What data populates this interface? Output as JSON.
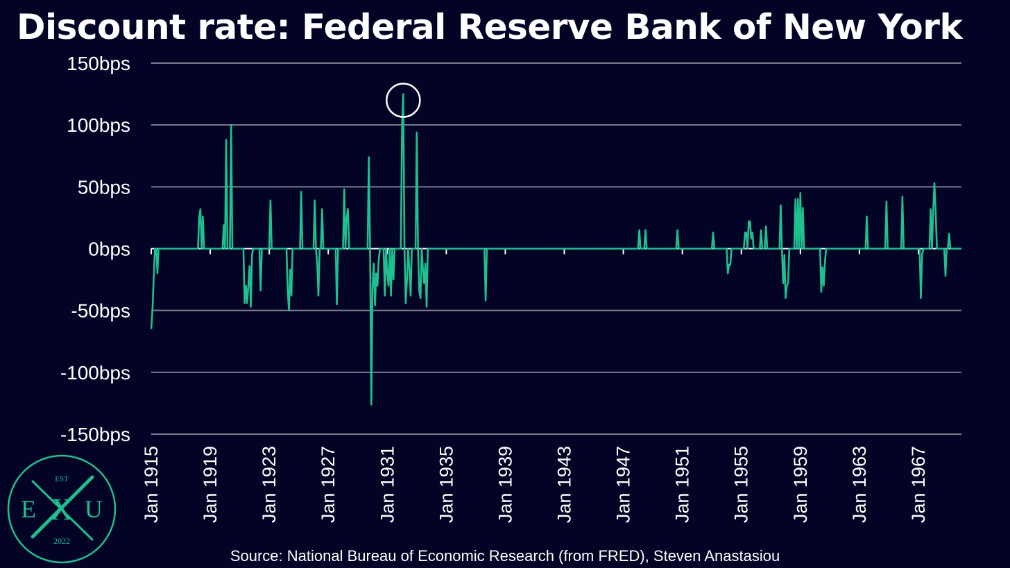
{
  "title": "Discount rate: Federal Reserve Bank of New York",
  "source": "Source: National Bureau of Economic Research (from FRED), Steven Anastasiou",
  "logo": {
    "top_text": "EST",
    "left_letter": "E",
    "center_letter": "X",
    "right_letter": "U",
    "bottom_text": "2022"
  },
  "colors": {
    "background": "#030326",
    "line": "#1fbf8f",
    "grid": "#7d7d92",
    "text": "#ffffff",
    "logo": "#1fbf8f"
  },
  "chart_data": {
    "type": "line",
    "title": "Discount rate: Federal Reserve Bank of New York",
    "xlabel": "",
    "ylabel": "",
    "x_range": [
      "1915-01",
      "1969-12"
    ],
    "ylim": [
      -150,
      150
    ],
    "y_ticks": [
      150,
      100,
      50,
      0,
      -50,
      -100,
      -150
    ],
    "y_tick_labels": [
      "150bps",
      "100bps",
      "50bps",
      "0bps",
      "-50bps",
      "-100bps",
      "-150bps"
    ],
    "x_ticks": [
      "1915-01",
      "1919-01",
      "1923-01",
      "1927-01",
      "1931-01",
      "1935-01",
      "1939-01",
      "1943-01",
      "1947-01",
      "1951-01",
      "1955-01",
      "1959-01",
      "1963-01",
      "1967-01"
    ],
    "x_tick_labels": [
      "Jan 1915",
      "Jan 1919",
      "Jan 1923",
      "Jan 1927",
      "Jan 1931",
      "Jan 1935",
      "Jan 1939",
      "Jan 1943",
      "Jan 1947",
      "Jan 1951",
      "Jan 1955",
      "Jan 1959",
      "Jan 1963",
      "Jan 1967"
    ],
    "grid": true,
    "legend": "none",
    "highlight": {
      "date": "1932-02",
      "value": 125
    },
    "series": [
      {
        "name": "",
        "points": [
          [
            "1915-01",
            -65
          ],
          [
            "1915-02",
            -50
          ],
          [
            "1915-03",
            -25
          ],
          [
            "1915-04",
            0
          ],
          [
            "1915-05",
            0
          ],
          [
            "1915-06",
            -20
          ],
          [
            "1915-07",
            0
          ],
          [
            "1918-03",
            0
          ],
          [
            "1918-04",
            25
          ],
          [
            "1918-05",
            32
          ],
          [
            "1918-06",
            0
          ],
          [
            "1918-07",
            26
          ],
          [
            "1918-08",
            0
          ],
          [
            "1919-11",
            0
          ],
          [
            "1919-12",
            19
          ],
          [
            "1920-01",
            0
          ],
          [
            "1920-02",
            88
          ],
          [
            "1920-03",
            0
          ],
          [
            "1920-05",
            0
          ],
          [
            "1920-06",
            100
          ],
          [
            "1920-07",
            0
          ],
          [
            "1921-04",
            0
          ],
          [
            "1921-05",
            -44
          ],
          [
            "1921-06",
            -30
          ],
          [
            "1921-07",
            -44
          ],
          [
            "1921-08",
            -30
          ],
          [
            "1921-09",
            -14
          ],
          [
            "1921-10",
            -47
          ],
          [
            "1921-11",
            -5
          ],
          [
            "1921-12",
            0
          ],
          [
            "1922-05",
            0
          ],
          [
            "1922-06",
            -34
          ],
          [
            "1922-07",
            0
          ],
          [
            "1922-12",
            0
          ],
          [
            "1923-01",
            0
          ],
          [
            "1923-02",
            39
          ],
          [
            "1923-03",
            0
          ],
          [
            "1924-03",
            0
          ],
          [
            "1924-04",
            -33
          ],
          [
            "1924-05",
            -50
          ],
          [
            "1924-06",
            -17
          ],
          [
            "1924-07",
            -38
          ],
          [
            "1924-08",
            0
          ],
          [
            "1925-02",
            0
          ],
          [
            "1925-03",
            46
          ],
          [
            "1925-04",
            0
          ],
          [
            "1926-01",
            0
          ],
          [
            "1926-02",
            39
          ],
          [
            "1926-03",
            0
          ],
          [
            "1926-04",
            -12
          ],
          [
            "1926-05",
            -38
          ],
          [
            "1926-06",
            0
          ],
          [
            "1926-07",
            0
          ],
          [
            "1926-08",
            32
          ],
          [
            "1926-09",
            0
          ],
          [
            "1927-07",
            0
          ],
          [
            "1927-08",
            -45
          ],
          [
            "1927-09",
            0
          ],
          [
            "1928-01",
            0
          ],
          [
            "1928-02",
            48
          ],
          [
            "1928-03",
            0
          ],
          [
            "1928-04",
            25
          ],
          [
            "1928-05",
            32
          ],
          [
            "1928-06",
            0
          ],
          [
            "1929-09",
            0
          ],
          [
            "1929-10",
            74
          ],
          [
            "1929-11",
            0
          ],
          [
            "1929-12",
            -126
          ],
          [
            "1930-01",
            -30
          ],
          [
            "1930-02",
            -12
          ],
          [
            "1930-03",
            -46
          ],
          [
            "1930-04",
            -20
          ],
          [
            "1930-05",
            -30
          ],
          [
            "1930-06",
            -10
          ],
          [
            "1930-07",
            0
          ],
          [
            "1930-10",
            0
          ],
          [
            "1930-11",
            -38
          ],
          [
            "1930-12",
            0
          ],
          [
            "1931-01",
            -20
          ],
          [
            "1931-02",
            -30
          ],
          [
            "1931-03",
            0
          ],
          [
            "1931-04",
            -38
          ],
          [
            "1931-05",
            0
          ],
          [
            "1931-06",
            -25
          ],
          [
            "1931-07",
            0
          ],
          [
            "1931-12",
            0
          ],
          [
            "1932-01",
            100
          ],
          [
            "1932-02",
            125
          ],
          [
            "1932-03",
            0
          ],
          [
            "1932-04",
            -44
          ],
          [
            "1932-05",
            -25
          ],
          [
            "1932-06",
            0
          ],
          [
            "1932-07",
            -17
          ],
          [
            "1932-08",
            -38
          ],
          [
            "1932-09",
            0
          ],
          [
            "1932-12",
            0
          ],
          [
            "1933-01",
            94
          ],
          [
            "1933-02",
            0
          ],
          [
            "1933-03",
            -34
          ],
          [
            "1933-04",
            -40
          ],
          [
            "1933-05",
            0
          ],
          [
            "1933-06",
            -17
          ],
          [
            "1933-07",
            -28
          ],
          [
            "1933-08",
            -12
          ],
          [
            "1933-09",
            -47
          ],
          [
            "1933-10",
            0
          ],
          [
            "1937-08",
            0
          ],
          [
            "1937-09",
            -42
          ],
          [
            "1937-10",
            0
          ],
          [
            "1948-01",
            0
          ],
          [
            "1948-02",
            15
          ],
          [
            "1948-03",
            0
          ],
          [
            "1948-06",
            0
          ],
          [
            "1948-07",
            15
          ],
          [
            "1948-08",
            0
          ],
          [
            "1950-08",
            0
          ],
          [
            "1950-09",
            15
          ],
          [
            "1950-10",
            0
          ],
          [
            "1953-01",
            0
          ],
          [
            "1953-02",
            13
          ],
          [
            "1953-03",
            0
          ],
          [
            "1954-01",
            0
          ],
          [
            "1954-02",
            -20
          ],
          [
            "1954-03",
            -13
          ],
          [
            "1954-04",
            -13
          ],
          [
            "1954-05",
            0
          ],
          [
            "1955-03",
            0
          ],
          [
            "1955-04",
            13
          ],
          [
            "1955-05",
            13
          ],
          [
            "1955-06",
            0
          ],
          [
            "1955-07",
            22
          ],
          [
            "1955-08",
            22
          ],
          [
            "1955-09",
            8
          ],
          [
            "1955-10",
            13
          ],
          [
            "1955-11",
            0
          ],
          [
            "1956-04",
            0
          ],
          [
            "1956-05",
            15
          ],
          [
            "1956-06",
            0
          ],
          [
            "1956-08",
            0
          ],
          [
            "1956-09",
            18
          ],
          [
            "1956-10",
            0
          ],
          [
            "1957-08",
            0
          ],
          [
            "1957-09",
            35
          ],
          [
            "1957-10",
            0
          ],
          [
            "1957-11",
            -28
          ],
          [
            "1957-12",
            -5
          ],
          [
            "1958-01",
            -40
          ],
          [
            "1958-02",
            -30
          ],
          [
            "1958-03",
            -28
          ],
          [
            "1958-04",
            0
          ],
          [
            "1958-08",
            0
          ],
          [
            "1958-09",
            40
          ],
          [
            "1958-10",
            0
          ],
          [
            "1958-11",
            40
          ],
          [
            "1958-12",
            0
          ],
          [
            "1959-01",
            45
          ],
          [
            "1959-02",
            0
          ],
          [
            "1959-03",
            33
          ],
          [
            "1959-04",
            0
          ],
          [
            "1960-05",
            0
          ],
          [
            "1960-06",
            -35
          ],
          [
            "1960-07",
            -15
          ],
          [
            "1960-08",
            -30
          ],
          [
            "1960-09",
            -10
          ],
          [
            "1960-10",
            0
          ],
          [
            "1963-06",
            0
          ],
          [
            "1963-07",
            26
          ],
          [
            "1963-08",
            0
          ],
          [
            "1964-10",
            0
          ],
          [
            "1964-11",
            38
          ],
          [
            "1964-12",
            0
          ],
          [
            "1965-11",
            0
          ],
          [
            "1965-12",
            42
          ],
          [
            "1966-01",
            0
          ],
          [
            "1967-02",
            0
          ],
          [
            "1967-03",
            -40
          ],
          [
            "1967-04",
            -5
          ],
          [
            "1967-05",
            0
          ],
          [
            "1967-10",
            0
          ],
          [
            "1967-11",
            32
          ],
          [
            "1967-12",
            0
          ],
          [
            "1968-01",
            30
          ],
          [
            "1968-02",
            53
          ],
          [
            "1968-03",
            30
          ],
          [
            "1968-04",
            0
          ],
          [
            "1968-10",
            0
          ],
          [
            "1968-11",
            -22
          ],
          [
            "1968-12",
            0
          ],
          [
            "1969-01",
            0
          ],
          [
            "1969-02",
            12
          ],
          [
            "1969-03",
            0
          ]
        ]
      }
    ]
  }
}
